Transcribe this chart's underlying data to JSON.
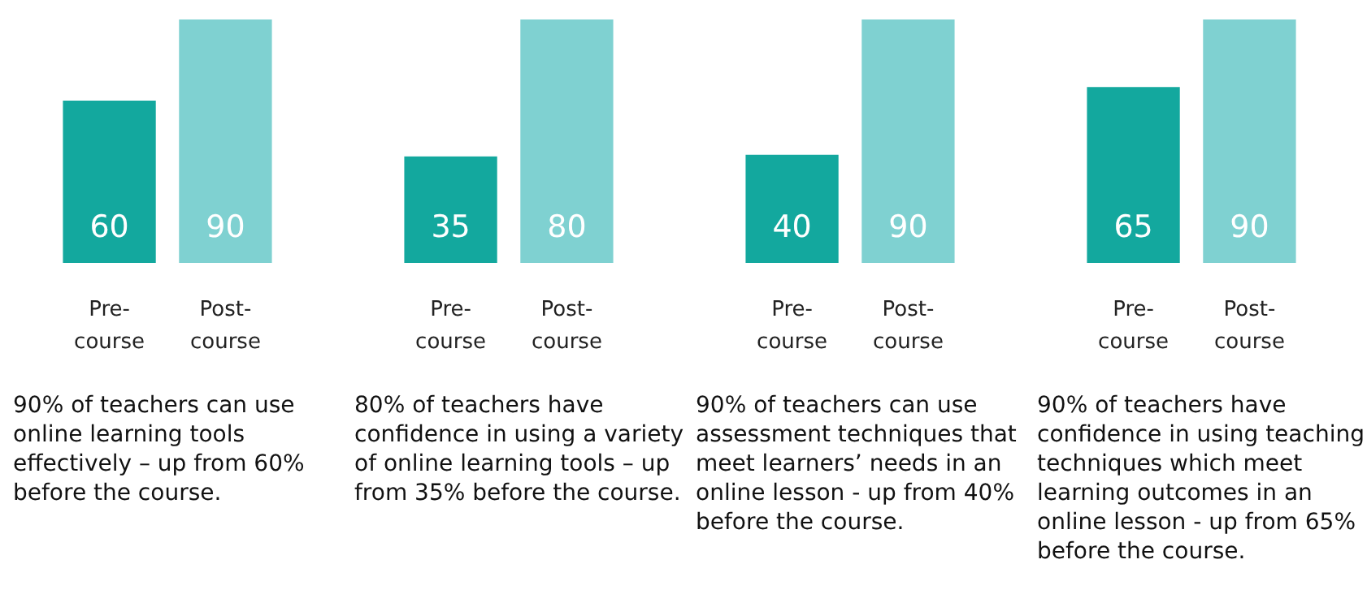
{
  "chart_data": [
    {
      "type": "bar",
      "categories": [
        "Pre-\ncourse",
        "Post-\ncourse"
      ],
      "values": [
        60,
        90
      ],
      "colors": [
        "#13a89e",
        "#7fd1d1"
      ],
      "data_labels": true,
      "annotations": [
        "90% of teachers can use online learning tools effectively – up from 60% before the course."
      ]
    },
    {
      "type": "bar",
      "categories": [
        "Pre-\ncourse",
        "Post-\ncourse"
      ],
      "values": [
        35,
        80
      ],
      "colors": [
        "#13a89e",
        "#7fd1d1"
      ],
      "data_labels": true,
      "annotations": [
        "80% of teachers have confidence in using a variety of online learning tools – up from 35% before the course."
      ]
    },
    {
      "type": "bar",
      "categories": [
        "Pre-\ncourse",
        "Post-\ncourse"
      ],
      "values": [
        40,
        90
      ],
      "colors": [
        "#13a89e",
        "#7fd1d1"
      ],
      "data_labels": true,
      "annotations": [
        "90% of teachers can use assessment techniques that meet learners’ needs in an online lesson - up from 40% before the course."
      ]
    },
    {
      "type": "bar",
      "categories": [
        "Pre-\ncourse",
        "Post-\ncourse"
      ],
      "values": [
        65,
        90
      ],
      "colors": [
        "#13a89e",
        "#7fd1d1"
      ],
      "data_labels": true,
      "annotations": [
        "90% of teachers have confidence in using teaching techniques which meet learning outcomes in an online lesson - up from 65% before the course."
      ]
    }
  ]
}
